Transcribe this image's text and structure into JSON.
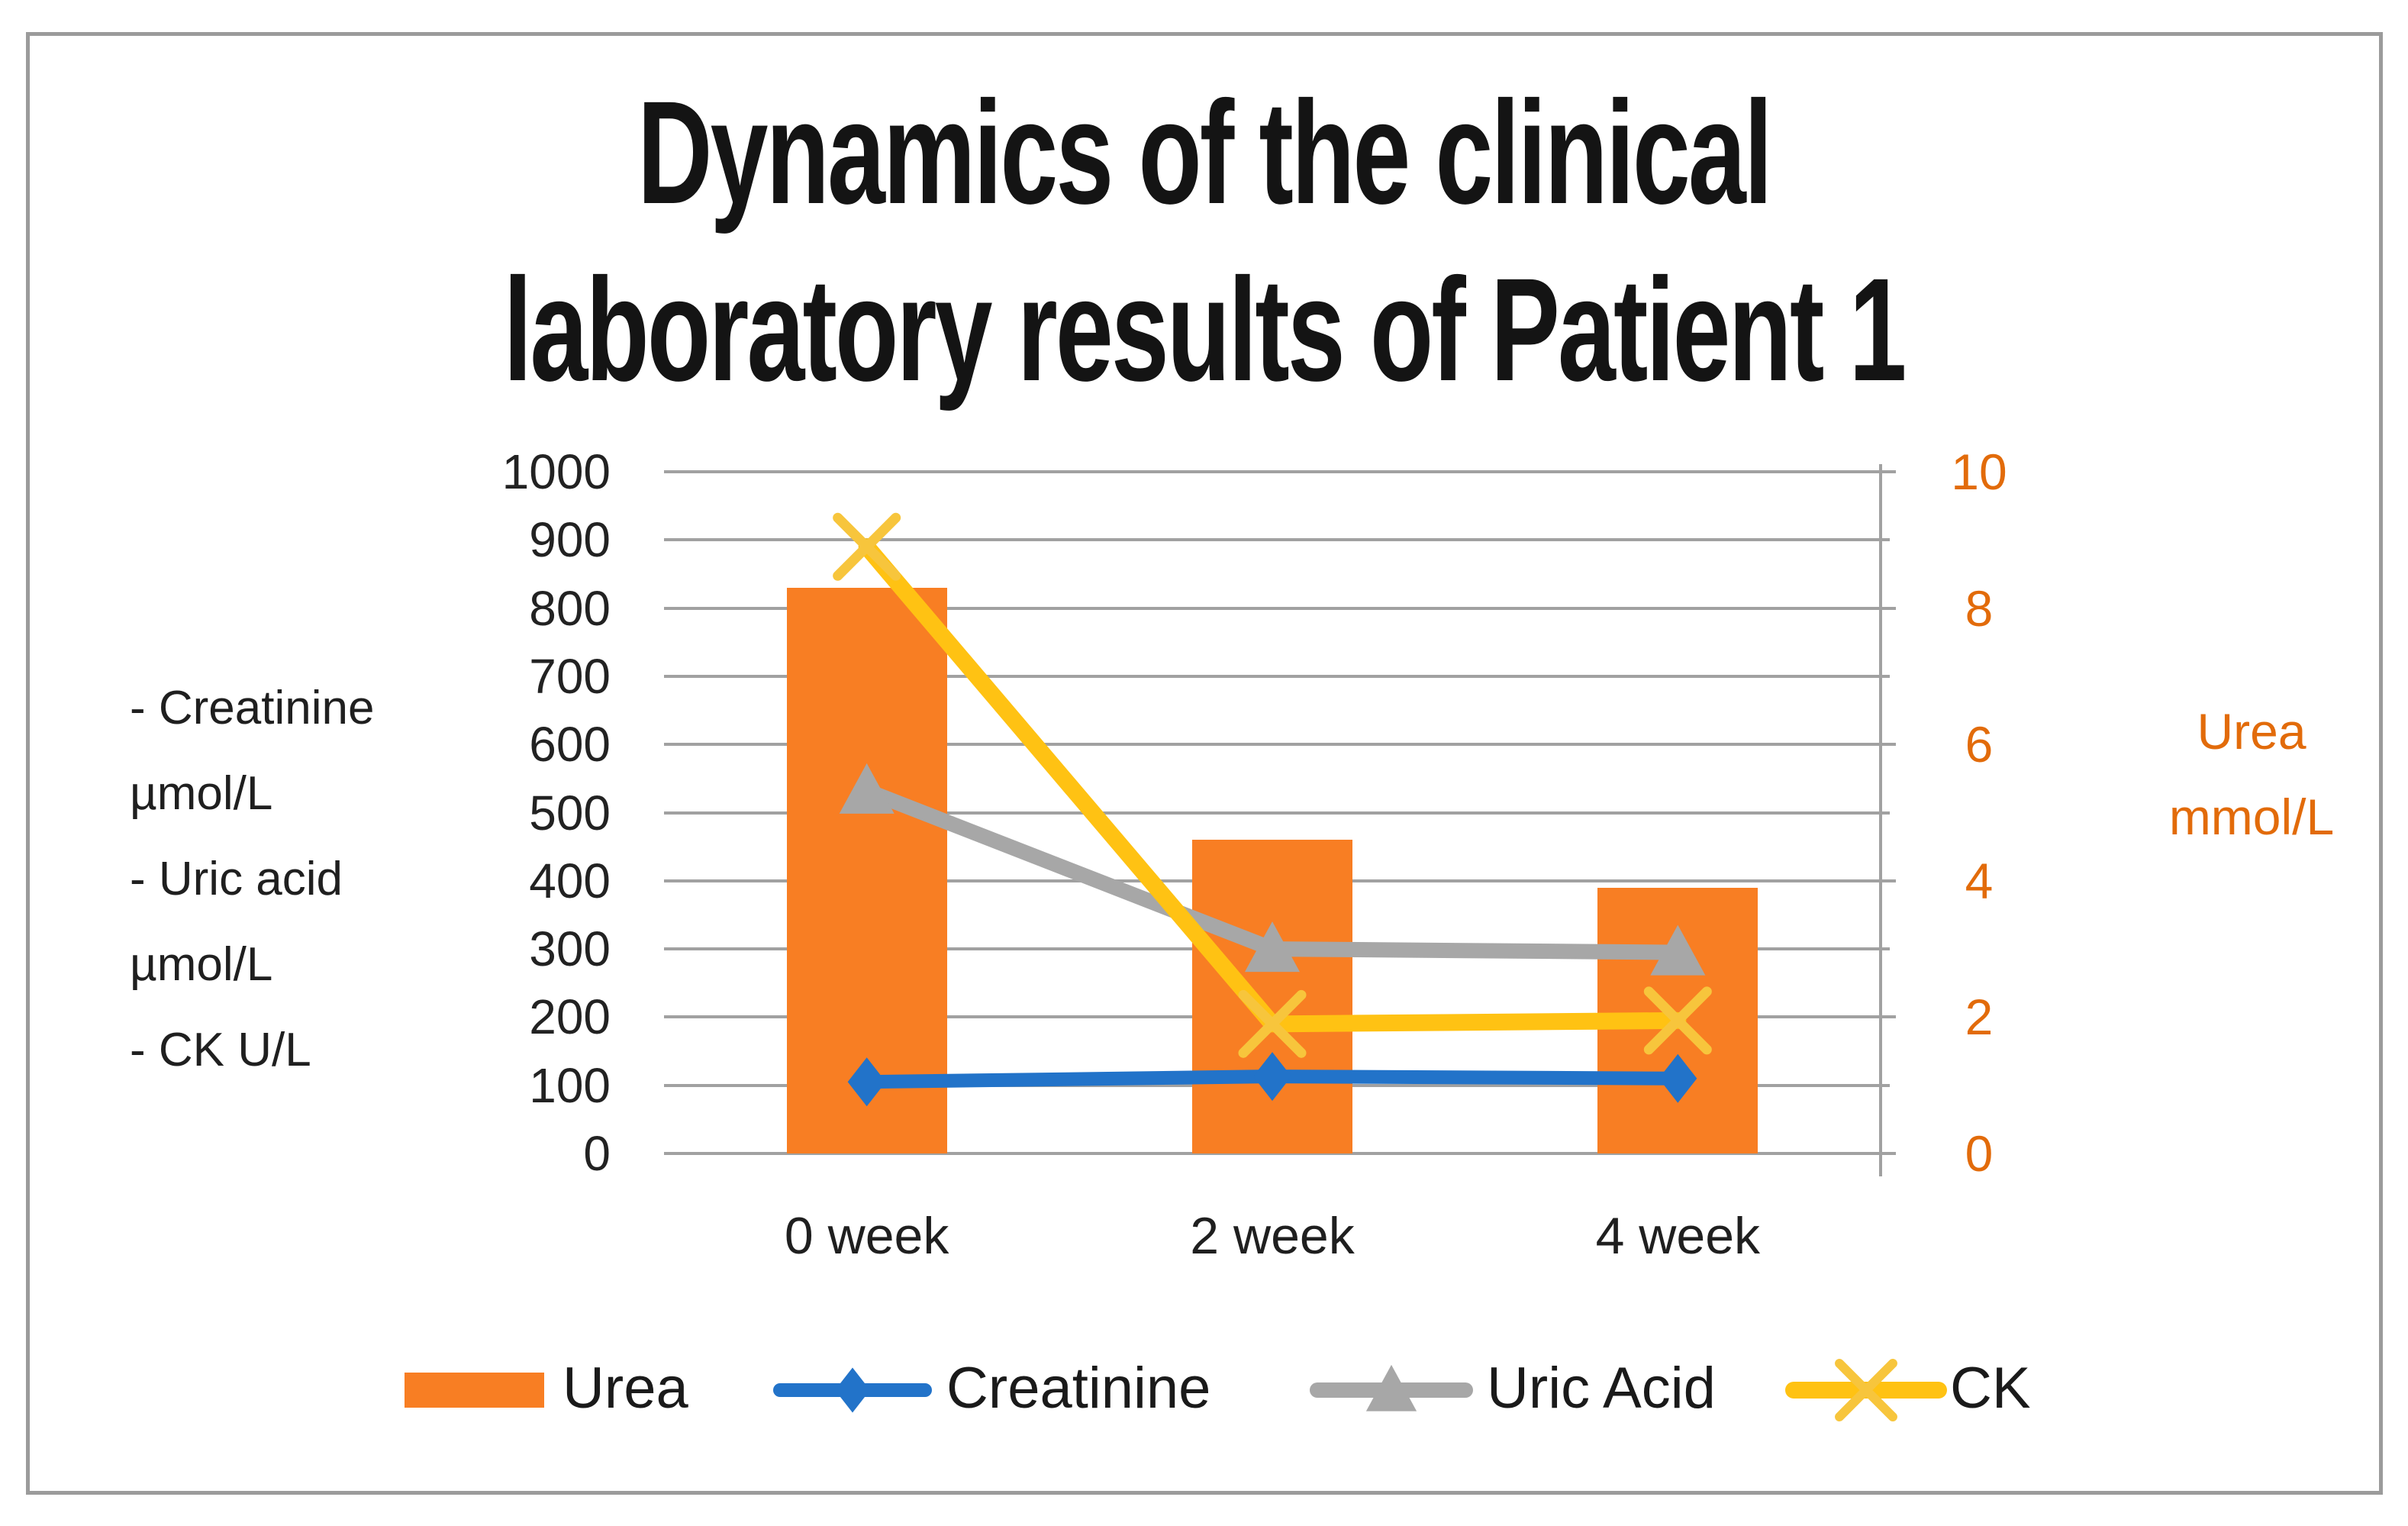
{
  "figure": {
    "title_line1": "Dynamics of the clinical",
    "title_line2": "laboratory results of Patient 1"
  },
  "chart_data": {
    "type": "combo-bar-line",
    "title": "Dynamics of the clinical laboratory results of Patient 1",
    "categories": [
      "0 week",
      "2 week",
      "4 week"
    ],
    "series": [
      {
        "name": "Urea",
        "type": "bar",
        "axis": "right",
        "unit": "mmol/L",
        "color": "#F87E23",
        "values": [
          8.3,
          4.6,
          3.9
        ]
      },
      {
        "name": "Creatinine",
        "type": "line",
        "marker": "diamond",
        "axis": "left",
        "unit": "µmol/L",
        "color": "#2273C9",
        "marker_color": "#2273C9",
        "values": [
          105,
          113,
          110
        ]
      },
      {
        "name": "Uric Acid",
        "type": "line",
        "marker": "triangle",
        "axis": "left",
        "unit": "µmol/L",
        "color": "#A7A7A7",
        "marker_color": "#A7A7A7",
        "values": [
          532,
          300,
          295
        ]
      },
      {
        "name": "CK",
        "type": "line",
        "marker": "x",
        "axis": "left",
        "unit": "U/L",
        "color": "#FFC213",
        "marker_color": "#F7C53C",
        "values": [
          890,
          190,
          195
        ]
      }
    ],
    "left_axis": {
      "min": 0,
      "max": 1000,
      "step": 100,
      "tick_labels": [
        "1000",
        "900",
        "800",
        "700",
        "600",
        "500",
        "400",
        "300",
        "200",
        "100",
        "0"
      ],
      "note_lines": [
        "- Creatinine",
        "µmol/L",
        "- Uric acid",
        "µmol/L",
        "- CK U/L"
      ]
    },
    "right_axis": {
      "min": 0,
      "max": 10,
      "major_step": 2,
      "minor_step": 1,
      "tick_labels": [
        "10",
        "8",
        "6",
        "4",
        "2",
        "0"
      ],
      "label_line1": "Urea",
      "label_line2": "mmol/L",
      "color": "#E26B0A"
    },
    "legend": [
      {
        "label": "Urea",
        "swatch": "bar"
      },
      {
        "label": "Creatinine",
        "swatch": "line-diamond"
      },
      {
        "label": "Uric Acid",
        "swatch": "line-triangle"
      },
      {
        "label": "CK",
        "swatch": "line-x"
      }
    ],
    "grid": true,
    "legend_position": "bottom",
    "colors": {
      "grid": "#a1a1a1",
      "frame": "#9b9b9b",
      "title_text": "#141414"
    }
  }
}
